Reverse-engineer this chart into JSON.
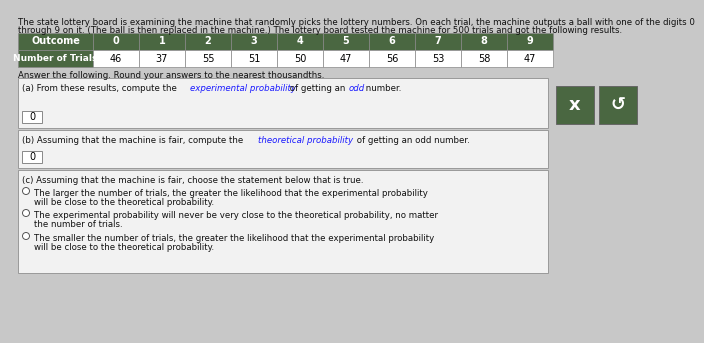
{
  "title_line1": "The state lottery board is examining the machine that randomly picks the lottery numbers. On each trial, the machine outputs a ball with one of the digits 0",
  "title_line2": "through 9 on it. (The ball is then replaced in the machine.) The lottery board tested the machine for 500 trials and got the following results.",
  "table_header": [
    "Outcome",
    "0",
    "1",
    "2",
    "3",
    "4",
    "5",
    "6",
    "7",
    "8",
    "9"
  ],
  "table_row_label": "Number of Trials",
  "table_values": [
    46,
    37,
    55,
    51,
    50,
    47,
    56,
    53,
    58,
    47
  ],
  "header_bg": "#4a6741",
  "header_fg": "#ffffff",
  "row_bg": "#ffffff",
  "row_fg": "#000000",
  "answer_prompt": "Answer the following. Round your answers to the nearest thousandths.",
  "part_a_answer": "0",
  "part_b_answer": "0",
  "part_c_label": "(c) Assuming that the machine is fair, choose the statement below that is true.",
  "option1_line1": "The larger the number of trials, the greater the likelihood that the experimental probability",
  "option1_line2": "will be close to the theoretical probability.",
  "option2_line1": "The experimental probability will never be very close to the theoretical probability, no matter",
  "option2_line2": "the number of trials.",
  "option3_line1": "The smaller the number of trials, the greater the likelihood that the experimental probability",
  "option3_line2": "will be close to the theoretical probability.",
  "btn_x_color": "#4a6741",
  "btn_s_color": "#4a6741",
  "bg_color": "#c8c8c8",
  "box_bg": "#f2f2f2",
  "font_size_title": 6.2,
  "font_size_table": 7.0,
  "font_size_body": 6.2,
  "link_color": "#1a1aff",
  "text_color": "#111111"
}
